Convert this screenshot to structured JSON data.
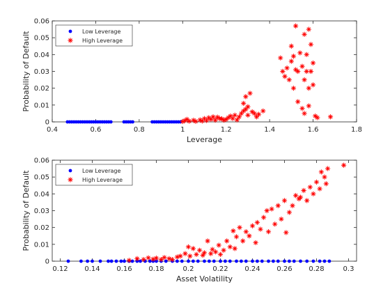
{
  "chart_data": [
    {
      "type": "scatter",
      "xlabel": "Leverage",
      "ylabel": "Probability of Default",
      "xlim": [
        0.4,
        1.8
      ],
      "ylim": [
        0,
        0.06
      ],
      "xticks": [
        "0.4",
        "0.6",
        "0.8",
        "1",
        "1.2",
        "1.4",
        "1.6",
        "1.8"
      ],
      "yticks": [
        "0",
        "0.01",
        "0.02",
        "0.03",
        "0.04",
        "0.05",
        "0.06"
      ],
      "legend_position": "top-left",
      "legend": [
        "Low Leverage",
        "High Leverage"
      ],
      "series": [
        {
          "name": "Low Leverage",
          "color": "#0000ff",
          "marker": "dot",
          "points": [
            [
              0.47,
              0
            ],
            [
              0.48,
              0
            ],
            [
              0.49,
              0
            ],
            [
              0.5,
              0
            ],
            [
              0.51,
              0
            ],
            [
              0.52,
              0
            ],
            [
              0.53,
              0
            ],
            [
              0.54,
              0
            ],
            [
              0.55,
              0
            ],
            [
              0.56,
              0
            ],
            [
              0.57,
              0
            ],
            [
              0.58,
              0
            ],
            [
              0.59,
              0
            ],
            [
              0.6,
              0
            ],
            [
              0.61,
              0
            ],
            [
              0.62,
              0
            ],
            [
              0.63,
              0
            ],
            [
              0.64,
              0
            ],
            [
              0.65,
              0
            ],
            [
              0.66,
              0
            ],
            [
              0.67,
              0
            ],
            [
              0.73,
              0
            ],
            [
              0.74,
              0
            ],
            [
              0.75,
              0
            ],
            [
              0.76,
              0
            ],
            [
              0.77,
              0
            ],
            [
              0.86,
              0
            ],
            [
              0.87,
              0
            ],
            [
              0.88,
              0
            ],
            [
              0.89,
              0
            ],
            [
              0.9,
              0
            ],
            [
              0.91,
              0
            ],
            [
              0.92,
              0
            ],
            [
              0.93,
              0
            ],
            [
              0.94,
              0
            ],
            [
              0.95,
              0
            ],
            [
              0.96,
              0
            ],
            [
              0.97,
              0
            ],
            [
              0.98,
              0
            ],
            [
              0.99,
              0
            ]
          ]
        },
        {
          "name": "High Leverage",
          "color": "#ff0000",
          "marker": "star",
          "points": [
            [
              1.0,
              0.0002
            ],
            [
              1.01,
              0.0008
            ],
            [
              1.02,
              0.0015
            ],
            [
              1.03,
              0.0004
            ],
            [
              1.05,
              0.001
            ],
            [
              1.06,
              0.0003
            ],
            [
              1.08,
              0.0012
            ],
            [
              1.09,
              0.0005
            ],
            [
              1.1,
              0.002
            ],
            [
              1.11,
              0.0008
            ],
            [
              1.12,
              0.0025
            ],
            [
              1.13,
              0.0015
            ],
            [
              1.14,
              0.003
            ],
            [
              1.15,
              0.001
            ],
            [
              1.16,
              0.0028
            ],
            [
              1.17,
              0.002
            ],
            [
              1.18,
              0.0018
            ],
            [
              1.19,
              0.001
            ],
            [
              1.2,
              0.0015
            ],
            [
              1.21,
              0.0025
            ],
            [
              1.22,
              0.0035
            ],
            [
              1.23,
              0.002
            ],
            [
              1.24,
              0.004
            ],
            [
              1.25,
              0.0012
            ],
            [
              1.26,
              0.003
            ],
            [
              1.27,
              0.005
            ],
            [
              1.28,
              0.0065
            ],
            [
              1.28,
              0.011
            ],
            [
              1.29,
              0.0075
            ],
            [
              1.29,
              0.015
            ],
            [
              1.3,
              0.004
            ],
            [
              1.3,
              0.009
            ],
            [
              1.31,
              0.017
            ],
            [
              1.32,
              0.006
            ],
            [
              1.33,
              0.005
            ],
            [
              1.34,
              0.003
            ],
            [
              1.35,
              0.0045
            ],
            [
              1.37,
              0.0065
            ],
            [
              1.45,
              0.038
            ],
            [
              1.46,
              0.03
            ],
            [
              1.47,
              0.027
            ],
            [
              1.48,
              0.032
            ],
            [
              1.49,
              0.025
            ],
            [
              1.5,
              0.045
            ],
            [
              1.5,
              0.036
            ],
            [
              1.51,
              0.039
            ],
            [
              1.51,
              0.02
            ],
            [
              1.52,
              0.057
            ],
            [
              1.52,
              0.031
            ],
            [
              1.53,
              0.012
            ],
            [
              1.53,
              0.03
            ],
            [
              1.54,
              0.041
            ],
            [
              1.55,
              0.033
            ],
            [
              1.55,
              0.008
            ],
            [
              1.56,
              0.052
            ],
            [
              1.56,
              0.025
            ],
            [
              1.56,
              0.005
            ],
            [
              1.57,
              0.04
            ],
            [
              1.57,
              0.03
            ],
            [
              1.58,
              0.055
            ],
            [
              1.58,
              0.02
            ],
            [
              1.58,
              0.0095
            ],
            [
              1.59,
              0.046
            ],
            [
              1.59,
              0.03
            ],
            [
              1.6,
              0.022
            ],
            [
              1.6,
              0.035
            ],
            [
              1.61,
              0.0035
            ],
            [
              1.62,
              0.0025
            ],
            [
              1.68,
              0.003
            ]
          ]
        }
      ]
    },
    {
      "type": "scatter",
      "xlabel": "Asset Volatility",
      "ylabel": "Probability of Default",
      "xlim": [
        0.115,
        0.305
      ],
      "ylim": [
        0,
        0.06
      ],
      "xticks": [
        "0.12",
        "0.14",
        "0.16",
        "0.18",
        "0.2",
        "0.22",
        "0.24",
        "0.26",
        "0.28",
        "0.3"
      ],
      "yticks": [
        "0",
        "0.01",
        "0.02",
        "0.03",
        "0.04",
        "0.05",
        "0.06"
      ],
      "legend_position": "top-left",
      "legend": [
        "Low Leverage",
        "High Leverage"
      ],
      "series": [
        {
          "name": "Low Leverage",
          "color": "#0000ff",
          "marker": "dot",
          "points": [
            [
              0.125,
              0
            ],
            [
              0.133,
              0
            ],
            [
              0.137,
              0
            ],
            [
              0.14,
              0
            ],
            [
              0.145,
              0
            ],
            [
              0.15,
              0
            ],
            [
              0.152,
              0
            ],
            [
              0.155,
              0
            ],
            [
              0.158,
              0
            ],
            [
              0.16,
              0
            ],
            [
              0.163,
              0
            ],
            [
              0.165,
              0
            ],
            [
              0.168,
              0
            ],
            [
              0.17,
              0
            ],
            [
              0.173,
              0
            ],
            [
              0.176,
              0
            ],
            [
              0.178,
              0
            ],
            [
              0.18,
              0
            ],
            [
              0.183,
              0
            ],
            [
              0.186,
              0
            ],
            [
              0.19,
              0
            ],
            [
              0.193,
              0
            ],
            [
              0.196,
              0
            ],
            [
              0.2,
              0
            ],
            [
              0.203,
              0
            ],
            [
              0.206,
              0
            ],
            [
              0.21,
              0
            ],
            [
              0.213,
              0
            ],
            [
              0.216,
              0
            ],
            [
              0.22,
              0
            ],
            [
              0.223,
              0
            ],
            [
              0.226,
              0
            ],
            [
              0.23,
              0
            ],
            [
              0.233,
              0
            ],
            [
              0.236,
              0
            ],
            [
              0.24,
              0
            ],
            [
              0.243,
              0
            ],
            [
              0.246,
              0
            ],
            [
              0.25,
              0
            ],
            [
              0.253,
              0
            ],
            [
              0.256,
              0
            ],
            [
              0.26,
              0
            ],
            [
              0.263,
              0
            ],
            [
              0.266,
              0
            ],
            [
              0.27,
              0
            ],
            [
              0.274,
              0
            ],
            [
              0.278,
              0
            ],
            [
              0.282,
              0
            ],
            [
              0.285,
              0
            ],
            [
              0.288,
              0
            ]
          ]
        },
        {
          "name": "High Leverage",
          "color": "#ff0000",
          "marker": "star",
          "points": [
            [
              0.163,
              0.0005
            ],
            [
              0.168,
              0.0015
            ],
            [
              0.172,
              0.001
            ],
            [
              0.175,
              0.002
            ],
            [
              0.178,
              0.0012
            ],
            [
              0.18,
              0.0018
            ],
            [
              0.183,
              0.001
            ],
            [
              0.185,
              0.0022
            ],
            [
              0.188,
              0.0015
            ],
            [
              0.19,
              0.001
            ],
            [
              0.193,
              0.0025
            ],
            [
              0.195,
              0.003
            ],
            [
              0.198,
              0.0045
            ],
            [
              0.2,
              0.0085
            ],
            [
              0.201,
              0.003
            ],
            [
              0.203,
              0.0075
            ],
            [
              0.205,
              0.004
            ],
            [
              0.207,
              0.0065
            ],
            [
              0.209,
              0.0035
            ],
            [
              0.21,
              0.005
            ],
            [
              0.212,
              0.012
            ],
            [
              0.214,
              0.0045
            ],
            [
              0.215,
              0.007
            ],
            [
              0.217,
              0.0055
            ],
            [
              0.219,
              0.0095
            ],
            [
              0.22,
              0.004
            ],
            [
              0.222,
              0.0065
            ],
            [
              0.224,
              0.012
            ],
            [
              0.226,
              0.0085
            ],
            [
              0.228,
              0.018
            ],
            [
              0.229,
              0.0075
            ],
            [
              0.23,
              0.0145
            ],
            [
              0.232,
              0.02
            ],
            [
              0.234,
              0.012
            ],
            [
              0.236,
              0.0175
            ],
            [
              0.238,
              0.015
            ],
            [
              0.24,
              0.021
            ],
            [
              0.242,
              0.011
            ],
            [
              0.243,
              0.023
            ],
            [
              0.245,
              0.019
            ],
            [
              0.247,
              0.026
            ],
            [
              0.249,
              0.03
            ],
            [
              0.25,
              0.0175
            ],
            [
              0.252,
              0.031
            ],
            [
              0.254,
              0.022
            ],
            [
              0.256,
              0.033
            ],
            [
              0.258,
              0.025
            ],
            [
              0.26,
              0.036
            ],
            [
              0.261,
              0.017
            ],
            [
              0.263,
              0.029
            ],
            [
              0.265,
              0.033
            ],
            [
              0.267,
              0.039
            ],
            [
              0.269,
              0.037
            ],
            [
              0.27,
              0.038
            ],
            [
              0.272,
              0.042
            ],
            [
              0.274,
              0.036
            ],
            [
              0.276,
              0.044
            ],
            [
              0.278,
              0.04
            ],
            [
              0.28,
              0.047
            ],
            [
              0.282,
              0.043
            ],
            [
              0.283,
              0.053
            ],
            [
              0.285,
              0.05
            ],
            [
              0.286,
              0.046
            ],
            [
              0.287,
              0.055
            ],
            [
              0.297,
              0.057
            ]
          ]
        }
      ]
    }
  ]
}
